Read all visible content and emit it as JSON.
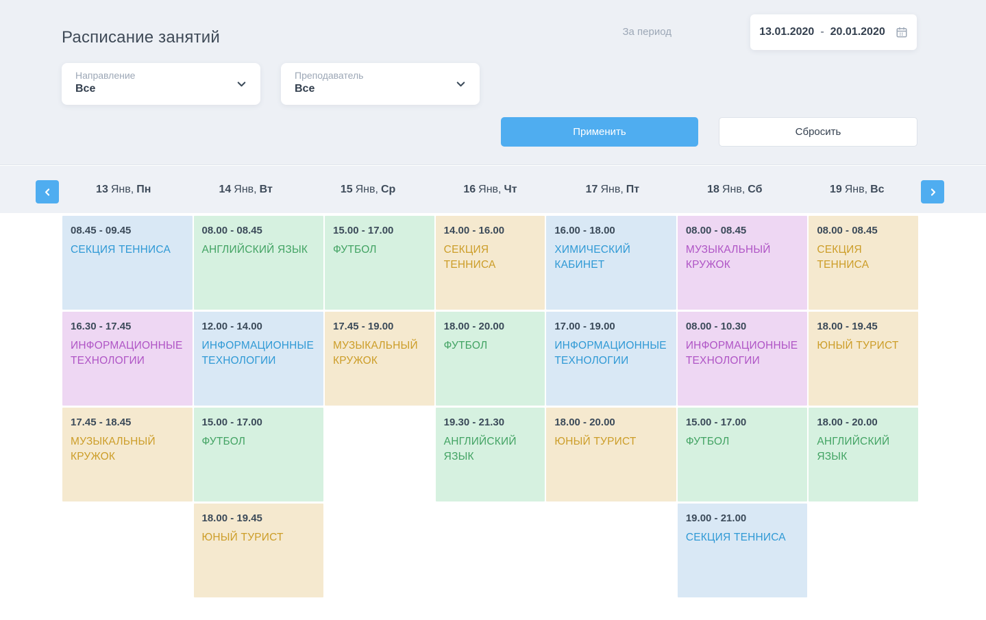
{
  "page": {
    "title": "Расписание занятий"
  },
  "filters": {
    "direction": {
      "label": "Направление",
      "value": "Все"
    },
    "teacher": {
      "label": "Преподаватель",
      "value": "Все"
    },
    "period": {
      "label": "За период",
      "from": "13.01.2020",
      "separator": "-",
      "to": "20.01.2020"
    },
    "apply_label": "Применить",
    "reset_label": "Сбросить"
  },
  "colors": {
    "accent": "#4fadf0",
    "event_types": {
      "blue": {
        "bg": "#d9e8f5",
        "text": "#2f99d5"
      },
      "green": {
        "bg": "#d6f1e0",
        "text": "#42a363"
      },
      "tan": {
        "bg": "#f5e9cf",
        "text": "#cc9d28"
      },
      "purple": {
        "bg": "#eed7f3",
        "text": "#af54c5"
      }
    }
  },
  "schedule": {
    "days": [
      {
        "date": "13",
        "month": "Янв,",
        "weekday": "Пн",
        "slots": [
          {
            "time": "08.45 - 09.45",
            "name": "СЕКЦИЯ ТЕННИСА",
            "type": "blue"
          },
          {
            "time": "16.30 - 17.45",
            "name": "ИНФОРМАЦИОННЫЕ ТЕХНОЛОГИИ",
            "type": "purple"
          },
          {
            "time": "17.45 - 18.45",
            "name": "МУЗЫКАЛЬНЫЙ КРУЖОК",
            "type": "tan"
          },
          null
        ]
      },
      {
        "date": "14",
        "month": "Янв,",
        "weekday": "Вт",
        "slots": [
          {
            "time": "08.00 - 08.45",
            "name": "АНГЛИЙСКИЙ ЯЗЫК",
            "type": "green"
          },
          {
            "time": "12.00 - 14.00",
            "name": "ИНФОРМАЦИОННЫЕ ТЕХНОЛОГИИ",
            "type": "blue"
          },
          {
            "time": "15.00 - 17.00",
            "name": "ФУТБОЛ",
            "type": "green"
          },
          {
            "time": "18.00 - 19.45",
            "name": "ЮНЫЙ ТУРИСТ",
            "type": "tan"
          }
        ]
      },
      {
        "date": "15",
        "month": "Янв,",
        "weekday": "Ср",
        "slots": [
          {
            "time": "15.00 - 17.00",
            "name": "ФУТБОЛ",
            "type": "green"
          },
          {
            "time": "17.45 - 19.00",
            "name": "МУЗЫКАЛЬНЫЙ КРУЖОК",
            "type": "tan"
          },
          null,
          null
        ]
      },
      {
        "date": "16",
        "month": "Янв,",
        "weekday": "Чт",
        "slots": [
          {
            "time": "14.00 - 16.00",
            "name": "СЕКЦИЯ ТЕННИСА",
            "type": "tan"
          },
          {
            "time": "18.00 - 20.00",
            "name": "ФУТБОЛ",
            "type": "green"
          },
          {
            "time": "19.30 - 21.30",
            "name": "АНГЛИЙСКИЙ ЯЗЫК",
            "type": "green"
          },
          null
        ]
      },
      {
        "date": "17",
        "month": "Янв,",
        "weekday": "Пт",
        "slots": [
          {
            "time": "16.00 - 18.00",
            "name": "ХИМИЧЕСКИЙ КАБИНЕТ",
            "type": "blue"
          },
          {
            "time": "17.00 - 19.00",
            "name": "ИНФОРМАЦИОННЫЕ ТЕХНОЛОГИИ",
            "type": "blue"
          },
          {
            "time": "18.00 - 20.00",
            "name": "ЮНЫЙ ТУРИСТ",
            "type": "tan"
          },
          null
        ]
      },
      {
        "date": "18",
        "month": "Янв,",
        "weekday": "Сб",
        "slots": [
          {
            "time": "08.00 - 08.45",
            "name": "МУЗЫКАЛЬНЫЙ КРУЖОК",
            "type": "purple"
          },
          {
            "time": "08.00 - 10.30",
            "name": "ИНФОРМАЦИОННЫЕ ТЕХНОЛОГИИ",
            "type": "purple"
          },
          {
            "time": "15.00 - 17.00",
            "name": "ФУТБОЛ",
            "type": "green"
          },
          {
            "time": "19.00 - 21.00",
            "name": "СЕКЦИЯ ТЕННИСА",
            "type": "blue"
          }
        ]
      },
      {
        "date": "19",
        "month": "Янв,",
        "weekday": "Вс",
        "slots": [
          {
            "time": "08.00 - 08.45",
            "name": "СЕКЦИЯ ТЕННИСА",
            "type": "tan"
          },
          {
            "time": "18.00 - 19.45",
            "name": "ЮНЫЙ ТУРИСТ",
            "type": "tan"
          },
          {
            "time": "18.00 - 20.00",
            "name": "АНГЛИЙСКИЙ ЯЗЫК",
            "type": "green"
          },
          null
        ]
      }
    ]
  }
}
